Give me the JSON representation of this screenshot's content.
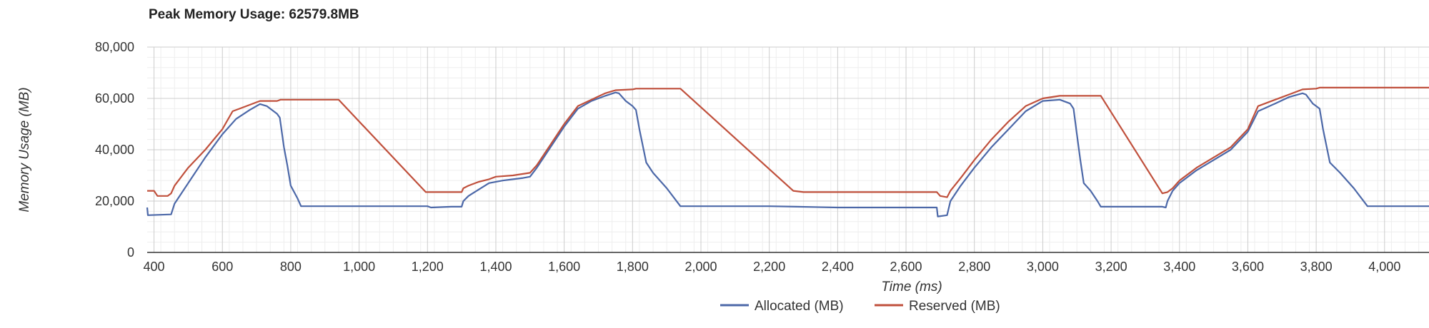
{
  "chart_data": {
    "type": "line",
    "title": "Peak Memory Usage: 62579.8MB",
    "xlabel": "Time (ms)",
    "ylabel": "Memory Usage (MB)",
    "xlim": [
      380,
      4130
    ],
    "ylim": [
      0,
      80000
    ],
    "x_ticks": [
      400,
      600,
      800,
      1000,
      1200,
      1400,
      1600,
      1800,
      2000,
      2200,
      2400,
      2600,
      2800,
      3000,
      3200,
      3400,
      3600,
      3800,
      4000
    ],
    "x_tick_labels": [
      "400",
      "600",
      "800",
      "1,000",
      "1,200",
      "1,400",
      "1,600",
      "1,800",
      "2,000",
      "2,200",
      "2,400",
      "2,600",
      "2,800",
      "3,000",
      "3,200",
      "3,400",
      "3,600",
      "3,800",
      "4,000"
    ],
    "y_ticks": [
      0,
      20000,
      40000,
      60000,
      80000
    ],
    "y_tick_labels": [
      "0",
      "20,000",
      "40,000",
      "60,000",
      "80,000"
    ],
    "grid": true,
    "legend_position": "bottom-center",
    "series": [
      {
        "name": "Allocated (MB)",
        "color": "#4c68a8",
        "points": [
          [
            380,
            17500
          ],
          [
            382,
            14500
          ],
          [
            450,
            14800
          ],
          [
            460,
            19000
          ],
          [
            500,
            27000
          ],
          [
            550,
            37000
          ],
          [
            600,
            46000
          ],
          [
            640,
            52000
          ],
          [
            680,
            55500
          ],
          [
            710,
            57800
          ],
          [
            730,
            57000
          ],
          [
            760,
            54000
          ],
          [
            768,
            52500
          ],
          [
            780,
            41000
          ],
          [
            790,
            34000
          ],
          [
            800,
            26000
          ],
          [
            820,
            21000
          ],
          [
            830,
            18000
          ],
          [
            900,
            18000
          ],
          [
            1200,
            18000
          ],
          [
            1210,
            17500
          ],
          [
            1270,
            17800
          ],
          [
            1300,
            17800
          ],
          [
            1305,
            20000
          ],
          [
            1320,
            22000
          ],
          [
            1350,
            24500
          ],
          [
            1380,
            27000
          ],
          [
            1420,
            28000
          ],
          [
            1450,
            28500
          ],
          [
            1480,
            29000
          ],
          [
            1500,
            29500
          ],
          [
            1520,
            33000
          ],
          [
            1560,
            41000
          ],
          [
            1600,
            49000
          ],
          [
            1640,
            56000
          ],
          [
            1680,
            59000
          ],
          [
            1720,
            61000
          ],
          [
            1750,
            62300
          ],
          [
            1760,
            62000
          ],
          [
            1780,
            59000
          ],
          [
            1800,
            57000
          ],
          [
            1810,
            55500
          ],
          [
            1820,
            48000
          ],
          [
            1840,
            35000
          ],
          [
            1860,
            31000
          ],
          [
            1900,
            25000
          ],
          [
            1940,
            18000
          ],
          [
            2000,
            18000
          ],
          [
            2200,
            18000
          ],
          [
            2280,
            17800
          ],
          [
            2400,
            17500
          ],
          [
            2600,
            17500
          ],
          [
            2690,
            17500
          ],
          [
            2693,
            14000
          ],
          [
            2720,
            14500
          ],
          [
            2730,
            20000
          ],
          [
            2760,
            26000
          ],
          [
            2800,
            33000
          ],
          [
            2850,
            41000
          ],
          [
            2900,
            48000
          ],
          [
            2950,
            55000
          ],
          [
            3000,
            59000
          ],
          [
            3050,
            59500
          ],
          [
            3080,
            58000
          ],
          [
            3090,
            56000
          ],
          [
            3100,
            46000
          ],
          [
            3110,
            36000
          ],
          [
            3120,
            27000
          ],
          [
            3140,
            24000
          ],
          [
            3160,
            20000
          ],
          [
            3170,
            17800
          ],
          [
            3250,
            17800
          ],
          [
            3350,
            17800
          ],
          [
            3360,
            17500
          ],
          [
            3365,
            20000
          ],
          [
            3380,
            24000
          ],
          [
            3400,
            27000
          ],
          [
            3450,
            32000
          ],
          [
            3500,
            36000
          ],
          [
            3550,
            40000
          ],
          [
            3600,
            47000
          ],
          [
            3630,
            55000
          ],
          [
            3680,
            58000
          ],
          [
            3720,
            60500
          ],
          [
            3760,
            62000
          ],
          [
            3770,
            61500
          ],
          [
            3790,
            58000
          ],
          [
            3810,
            56000
          ],
          [
            3820,
            48000
          ],
          [
            3840,
            35000
          ],
          [
            3870,
            31000
          ],
          [
            3910,
            25000
          ],
          [
            3950,
            18000
          ],
          [
            4000,
            18000
          ],
          [
            4130,
            18000
          ]
        ]
      },
      {
        "name": "Reserved (MB)",
        "color": "#c0503c",
        "points": [
          [
            380,
            24000
          ],
          [
            400,
            24000
          ],
          [
            410,
            22000
          ],
          [
            440,
            22000
          ],
          [
            450,
            23000
          ],
          [
            460,
            26000
          ],
          [
            500,
            33000
          ],
          [
            550,
            40000
          ],
          [
            600,
            48000
          ],
          [
            630,
            55000
          ],
          [
            660,
            56500
          ],
          [
            700,
            58500
          ],
          [
            710,
            59000
          ],
          [
            760,
            59000
          ],
          [
            770,
            59500
          ],
          [
            940,
            59500
          ],
          [
            1195,
            23500
          ],
          [
            1300,
            23500
          ],
          [
            1305,
            25000
          ],
          [
            1320,
            26000
          ],
          [
            1350,
            27500
          ],
          [
            1380,
            28500
          ],
          [
            1400,
            29500
          ],
          [
            1450,
            30000
          ],
          [
            1500,
            31000
          ],
          [
            1520,
            34000
          ],
          [
            1560,
            42000
          ],
          [
            1600,
            50000
          ],
          [
            1640,
            57000
          ],
          [
            1680,
            59500
          ],
          [
            1720,
            62000
          ],
          [
            1750,
            63200
          ],
          [
            1800,
            63500
          ],
          [
            1810,
            63800
          ],
          [
            1940,
            63800
          ],
          [
            2270,
            24000
          ],
          [
            2300,
            23500
          ],
          [
            2600,
            23500
          ],
          [
            2690,
            23500
          ],
          [
            2700,
            22000
          ],
          [
            2720,
            21500
          ],
          [
            2730,
            24000
          ],
          [
            2760,
            29000
          ],
          [
            2800,
            36000
          ],
          [
            2850,
            44000
          ],
          [
            2900,
            51000
          ],
          [
            2950,
            57000
          ],
          [
            3000,
            60000
          ],
          [
            3050,
            61000
          ],
          [
            3100,
            61000
          ],
          [
            3170,
            61000
          ],
          [
            3350,
            23000
          ],
          [
            3365,
            23500
          ],
          [
            3380,
            25000
          ],
          [
            3400,
            28000
          ],
          [
            3450,
            33000
          ],
          [
            3500,
            37000
          ],
          [
            3550,
            41000
          ],
          [
            3600,
            48000
          ],
          [
            3630,
            57000
          ],
          [
            3680,
            59500
          ],
          [
            3720,
            61500
          ],
          [
            3760,
            63500
          ],
          [
            3800,
            63800
          ],
          [
            3810,
            64200
          ],
          [
            4130,
            64200
          ]
        ]
      }
    ]
  }
}
